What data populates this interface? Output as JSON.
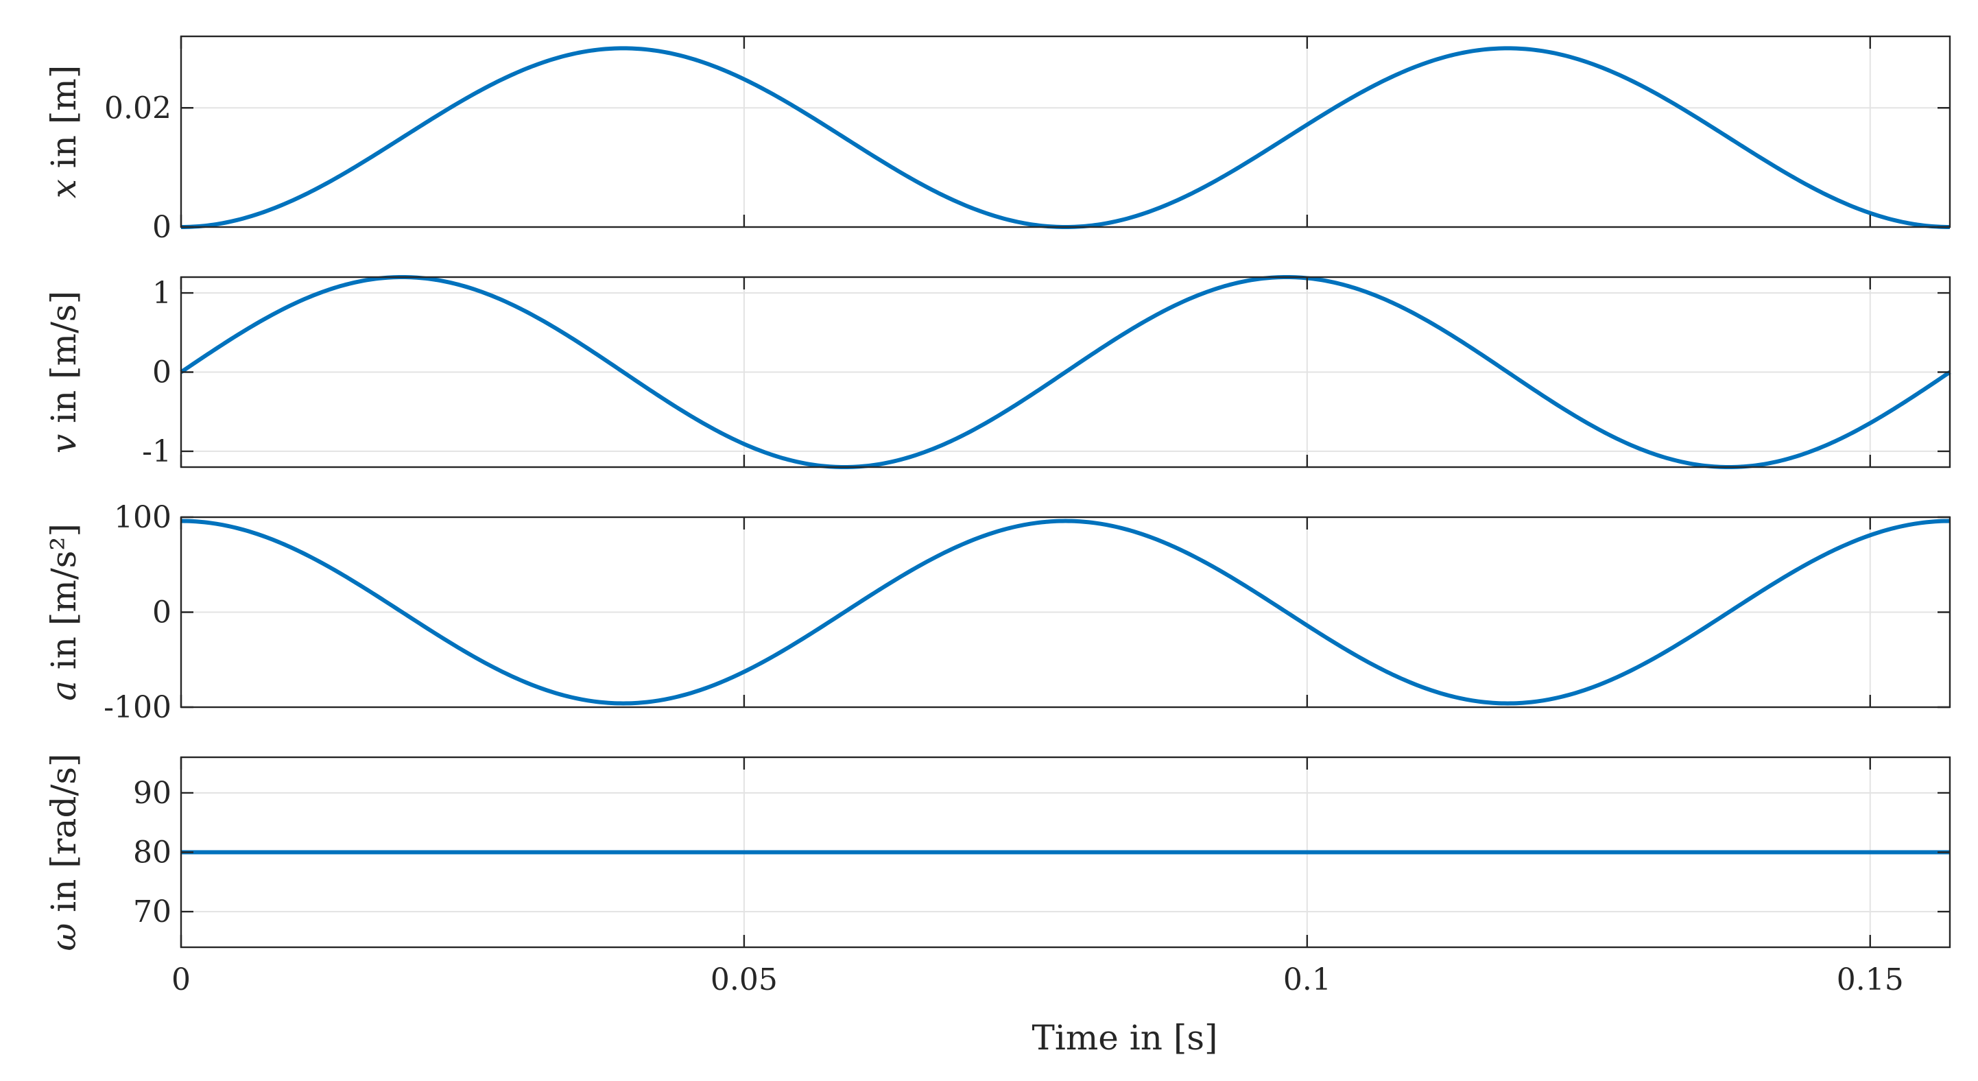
{
  "figure": {
    "xlabel": "Time in [s]"
  },
  "chart_data": [
    {
      "type": "line",
      "ylabel_var": "x",
      "ylabel_unit": " in [m]",
      "xlim": [
        0,
        0.15708
      ],
      "ylim": [
        0,
        0.032
      ],
      "yticks": [
        0,
        0.02
      ],
      "ytick_labels": [
        "0",
        "0.02"
      ],
      "xticks": [
        0,
        0.05,
        0.1,
        0.15
      ],
      "grid": true,
      "color": "#0072BD",
      "series": [
        {
          "equation": "x = 0.015 - 0.015*cos(80 t)",
          "amplitude": 0.015,
          "offset": 0.015,
          "omega": 80,
          "kind": "x",
          "x": [
            0,
            0.0196,
            0.0393,
            0.0589,
            0.0785,
            0.0982,
            0.1178,
            0.1374,
            0.1571
          ],
          "y": [
            0,
            0.015,
            0.03,
            0.015,
            0,
            0.015,
            0.03,
            0.015,
            0
          ]
        }
      ]
    },
    {
      "type": "line",
      "ylabel_var": "v",
      "ylabel_unit": " in [m/s]",
      "xlim": [
        0,
        0.15708
      ],
      "ylim": [
        -1.2,
        1.2
      ],
      "yticks": [
        -1,
        0,
        1
      ],
      "ytick_labels": [
        "-1",
        "0",
        "1"
      ],
      "xticks": [
        0,
        0.05,
        0.1,
        0.15
      ],
      "grid": true,
      "color": "#0072BD",
      "series": [
        {
          "equation": "v = 1.2*sin(80 t)",
          "amplitude": 1.2,
          "omega": 80,
          "kind": "v",
          "x": [
            0,
            0.0196,
            0.0393,
            0.0589,
            0.0785,
            0.0982,
            0.1178,
            0.1374,
            0.1571
          ],
          "y": [
            0,
            1.2,
            0,
            -1.2,
            0,
            1.2,
            0,
            -1.2,
            0
          ]
        }
      ]
    },
    {
      "type": "line",
      "ylabel_var": "a",
      "ylabel_unit": " in [m/s²]",
      "xlim": [
        0,
        0.15708
      ],
      "ylim": [
        -100,
        100
      ],
      "yticks": [
        -100,
        0,
        100
      ],
      "ytick_labels": [
        "-100",
        "0",
        "100"
      ],
      "xticks": [
        0,
        0.05,
        0.1,
        0.15
      ],
      "grid": true,
      "color": "#0072BD",
      "series": [
        {
          "equation": "a = 96*cos(80 t)",
          "amplitude": 96,
          "omega": 80,
          "kind": "a",
          "x": [
            0,
            0.0196,
            0.0393,
            0.0589,
            0.0785,
            0.0982,
            0.1178,
            0.1374,
            0.1571
          ],
          "y": [
            96,
            0,
            -96,
            0,
            96,
            0,
            -96,
            0,
            96
          ]
        }
      ]
    },
    {
      "type": "line",
      "ylabel_var": "ω",
      "ylabel_unit": " in [rad/s]",
      "xlim": [
        0,
        0.15708
      ],
      "ylim": [
        64,
        96
      ],
      "yticks": [
        70,
        80,
        90
      ],
      "ytick_labels": [
        "70",
        "80",
        "90"
      ],
      "xticks": [
        0,
        0.05,
        0.1,
        0.15
      ],
      "xtick_labels": [
        "0",
        "0.05",
        "0.1",
        "0.15"
      ],
      "grid": true,
      "color": "#0072BD",
      "series": [
        {
          "equation": "omega = 80",
          "kind": "w",
          "x": [
            0,
            0.15708
          ],
          "y": [
            80,
            80
          ]
        }
      ]
    }
  ]
}
